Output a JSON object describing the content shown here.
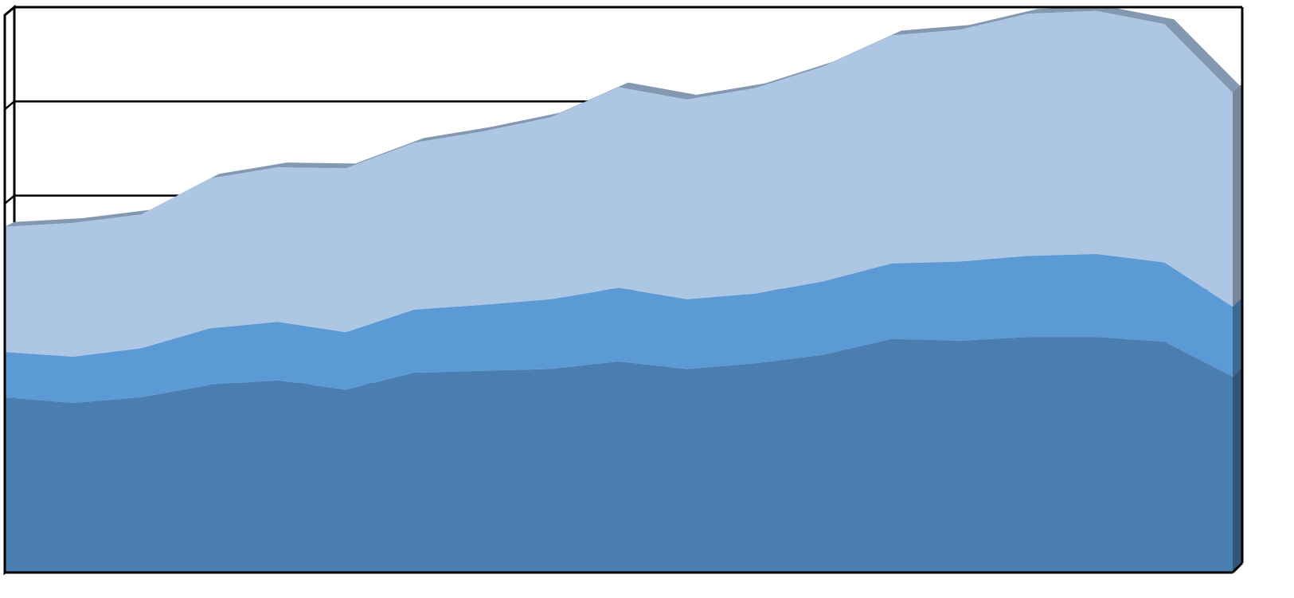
{
  "chart_data": {
    "type": "area",
    "stacked": true,
    "three_d": true,
    "grid": true,
    "legend": "none",
    "title": "",
    "xlabel": "",
    "ylabel": "",
    "ylim": [
      0,
      6
    ],
    "x": [
      1,
      2,
      3,
      4,
      5,
      6,
      7,
      8,
      9,
      10,
      11,
      12,
      13,
      14,
      15,
      16,
      17,
      18,
      19
    ],
    "series": [
      {
        "values": [
          1.86,
          1.8,
          1.86,
          1.99,
          2.04,
          1.94,
          2.12,
          2.14,
          2.16,
          2.24,
          2.16,
          2.22,
          2.31,
          2.48,
          2.46,
          2.5,
          2.5,
          2.45,
          2.08
        ],
        "color": "#4a7eb1"
      },
      {
        "values": [
          0.48,
          0.49,
          0.52,
          0.6,
          0.62,
          0.61,
          0.67,
          0.7,
          0.74,
          0.78,
          0.74,
          0.74,
          0.78,
          0.8,
          0.84,
          0.86,
          0.88,
          0.84,
          0.74
        ],
        "color": "#5b9ad4"
      },
      {
        "values": [
          1.33,
          1.42,
          1.42,
          1.59,
          1.64,
          1.74,
          1.77,
          1.84,
          1.93,
          2.13,
          2.12,
          2.18,
          2.28,
          2.42,
          2.46,
          2.57,
          2.58,
          2.53,
          2.27
        ],
        "color": "#adc6e4"
      }
    ]
  }
}
